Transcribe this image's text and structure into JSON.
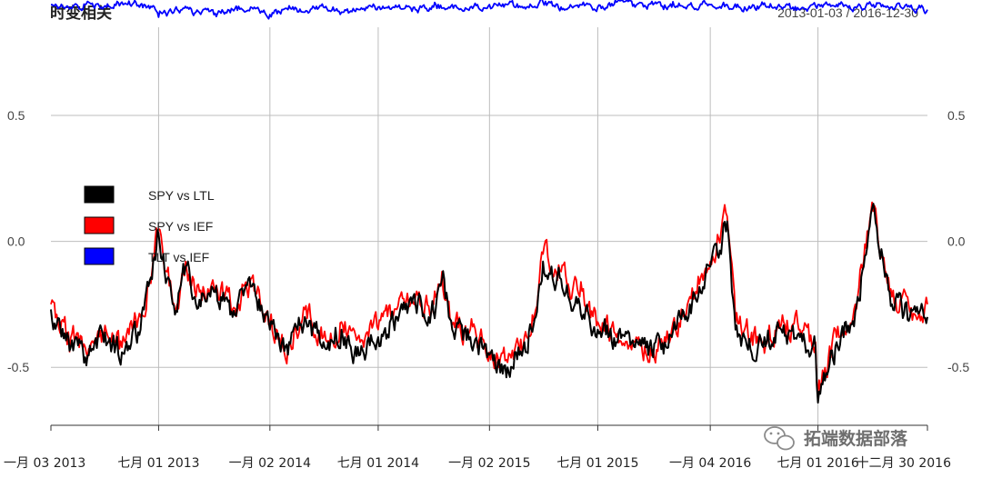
{
  "chart_data": {
    "type": "line",
    "title": "时变相关",
    "date_range": "2013-01-03 / 2016-12-30",
    "ylim": [
      -0.73,
      0.85
    ],
    "yticks": [
      {
        "value": 0.5,
        "label": "0.5"
      },
      {
        "value": 0.0,
        "label": "0.0"
      },
      {
        "value": -0.5,
        "label": "-0.5"
      }
    ],
    "xlim": [
      "2013-01-03",
      "2016-12-30"
    ],
    "xticks": [
      {
        "date": "2013-01-03",
        "label": "一月 03 2013"
      },
      {
        "date": "2013-07-01",
        "label": "七月 01 2013"
      },
      {
        "date": "2014-01-02",
        "label": "一月 02 2014"
      },
      {
        "date": "2014-07-01",
        "label": "七月 01 2014"
      },
      {
        "date": "2015-01-02",
        "label": "一月 02 2015"
      },
      {
        "date": "2015-07-01",
        "label": "七月 01 2015"
      },
      {
        "date": "2016-01-04",
        "label": "一月 04 2016"
      },
      {
        "date": "2016-07-01",
        "label": "七月 01 2016"
      },
      {
        "date": "2016-12-30",
        "label": "十二月 30 2016"
      }
    ],
    "grid": true,
    "legend_position": "top-left",
    "series": [
      {
        "name": "SPY vs LTL",
        "color": "#000000",
        "dates": [
          "2013-01-03",
          "2013-02-01",
          "2013-03-01",
          "2013-04-01",
          "2013-05-01",
          "2013-06-01",
          "2013-06-20",
          "2013-07-01",
          "2013-07-15",
          "2013-08-01",
          "2013-08-15",
          "2013-09-01",
          "2013-10-01",
          "2013-11-01",
          "2013-12-01",
          "2014-01-02",
          "2014-02-01",
          "2014-03-01",
          "2014-04-01",
          "2014-05-01",
          "2014-06-01",
          "2014-07-01",
          "2014-08-01",
          "2014-09-01",
          "2014-10-01",
          "2014-10-15",
          "2014-11-01",
          "2014-12-01",
          "2015-01-02",
          "2015-02-01",
          "2015-03-01",
          "2015-03-20",
          "2015-04-01",
          "2015-05-01",
          "2015-06-01",
          "2015-07-01",
          "2015-08-01",
          "2015-09-01",
          "2015-10-01",
          "2015-11-01",
          "2015-12-01",
          "2016-01-04",
          "2016-02-01",
          "2016-02-15",
          "2016-03-01",
          "2016-04-01",
          "2016-05-01",
          "2016-06-01",
          "2016-06-27",
          "2016-07-01",
          "2016-08-01",
          "2016-09-01",
          "2016-09-15",
          "2016-10-01",
          "2016-11-01",
          "2016-12-01",
          "2016-12-30"
        ],
        "values": [
          -0.27,
          -0.38,
          -0.46,
          -0.4,
          -0.44,
          -0.35,
          -0.15,
          0.03,
          -0.15,
          -0.28,
          -0.1,
          -0.25,
          -0.2,
          -0.3,
          -0.18,
          -0.35,
          -0.45,
          -0.3,
          -0.4,
          -0.35,
          -0.45,
          -0.38,
          -0.3,
          -0.25,
          -0.28,
          -0.15,
          -0.35,
          -0.38,
          -0.45,
          -0.5,
          -0.4,
          -0.3,
          -0.08,
          -0.15,
          -0.25,
          -0.35,
          -0.4,
          -0.42,
          -0.46,
          -0.38,
          -0.25,
          -0.1,
          0.08,
          -0.35,
          -0.38,
          -0.42,
          -0.35,
          -0.38,
          -0.42,
          -0.64,
          -0.4,
          -0.28,
          -0.1,
          0.15,
          -0.25,
          -0.3,
          -0.3
        ]
      },
      {
        "name": "SPY vs IEF",
        "color": "#ff0000",
        "dates": [
          "2013-01-03",
          "2013-02-01",
          "2013-03-01",
          "2013-04-01",
          "2013-05-01",
          "2013-06-01",
          "2013-06-20",
          "2013-07-01",
          "2013-07-15",
          "2013-08-01",
          "2013-08-15",
          "2013-09-01",
          "2013-10-01",
          "2013-11-01",
          "2013-12-01",
          "2014-01-02",
          "2014-02-01",
          "2014-03-01",
          "2014-04-01",
          "2014-05-01",
          "2014-06-01",
          "2014-07-01",
          "2014-08-01",
          "2014-09-01",
          "2014-10-01",
          "2014-10-15",
          "2014-11-01",
          "2014-12-01",
          "2015-01-02",
          "2015-02-01",
          "2015-03-01",
          "2015-03-20",
          "2015-04-01",
          "2015-05-01",
          "2015-06-01",
          "2015-07-01",
          "2015-08-01",
          "2015-09-01",
          "2015-10-01",
          "2015-11-01",
          "2015-12-01",
          "2016-01-04",
          "2016-02-01",
          "2016-02-15",
          "2016-03-01",
          "2016-04-01",
          "2016-05-01",
          "2016-06-01",
          "2016-06-27",
          "2016-07-01",
          "2016-08-01",
          "2016-09-01",
          "2016-09-15",
          "2016-10-01",
          "2016-11-01",
          "2016-12-01",
          "2016-12-30"
        ],
        "values": [
          -0.25,
          -0.36,
          -0.42,
          -0.37,
          -0.42,
          -0.3,
          -0.12,
          0.05,
          -0.12,
          -0.25,
          -0.08,
          -0.22,
          -0.18,
          -0.27,
          -0.15,
          -0.32,
          -0.42,
          -0.27,
          -0.38,
          -0.32,
          -0.4,
          -0.35,
          -0.27,
          -0.22,
          -0.25,
          -0.12,
          -0.33,
          -0.35,
          -0.44,
          -0.48,
          -0.38,
          -0.27,
          -0.05,
          -0.12,
          -0.22,
          -0.32,
          -0.38,
          -0.4,
          -0.43,
          -0.35,
          -0.22,
          -0.08,
          0.1,
          -0.32,
          -0.35,
          -0.4,
          -0.33,
          -0.35,
          -0.4,
          -0.6,
          -0.38,
          -0.25,
          -0.08,
          0.12,
          -0.22,
          -0.28,
          -0.25
        ]
      },
      {
        "name": "TLT vs IEF",
        "color": "#0000ff",
        "dates": [
          "2013-01-03",
          "2013-02-01",
          "2013-03-01",
          "2013-04-01",
          "2013-05-01",
          "2013-06-01",
          "2013-06-20",
          "2013-07-01",
          "2013-08-01",
          "2013-09-01",
          "2013-10-01",
          "2013-11-01",
          "2013-12-01",
          "2014-01-02",
          "2014-02-01",
          "2014-03-01",
          "2014-04-01",
          "2014-05-01",
          "2014-06-01",
          "2014-07-01",
          "2014-08-01",
          "2014-09-01",
          "2014-10-01",
          "2014-11-01",
          "2014-12-01",
          "2015-01-02",
          "2015-02-01",
          "2015-03-01",
          "2015-04-01",
          "2015-05-01",
          "2015-06-01",
          "2015-07-01",
          "2015-08-01",
          "2015-09-01",
          "2015-10-01",
          "2015-11-01",
          "2015-12-01",
          "2016-01-04",
          "2016-02-01",
          "2016-03-01",
          "2016-04-01",
          "2016-05-01",
          "2016-06-01",
          "2016-07-01",
          "2016-08-01",
          "2016-09-01",
          "2016-10-01",
          "2016-11-01",
          "2016-12-01",
          "2016-12-30"
        ],
        "values": [
          0.94,
          0.93,
          0.94,
          0.93,
          0.95,
          0.94,
          0.93,
          0.89,
          0.92,
          0.91,
          0.9,
          0.92,
          0.93,
          0.9,
          0.92,
          0.91,
          0.93,
          0.91,
          0.92,
          0.93,
          0.93,
          0.92,
          0.93,
          0.94,
          0.93,
          0.94,
          0.94,
          0.93,
          0.95,
          0.93,
          0.94,
          0.93,
          0.95,
          0.93,
          0.94,
          0.93,
          0.94,
          0.94,
          0.94,
          0.93,
          0.94,
          0.93,
          0.92,
          0.94,
          0.94,
          0.93,
          0.94,
          0.93,
          0.93,
          0.92
        ]
      }
    ]
  },
  "legend": [
    {
      "label": "SPY vs LTL",
      "color": "#000000"
    },
    {
      "label": "SPY vs IEF",
      "color": "#ff0000"
    },
    {
      "label": "TLT vs IEF",
      "color": "#0000ff"
    }
  ],
  "watermark": {
    "text": "拓端数据部落",
    "icon": "wechat-icon"
  }
}
